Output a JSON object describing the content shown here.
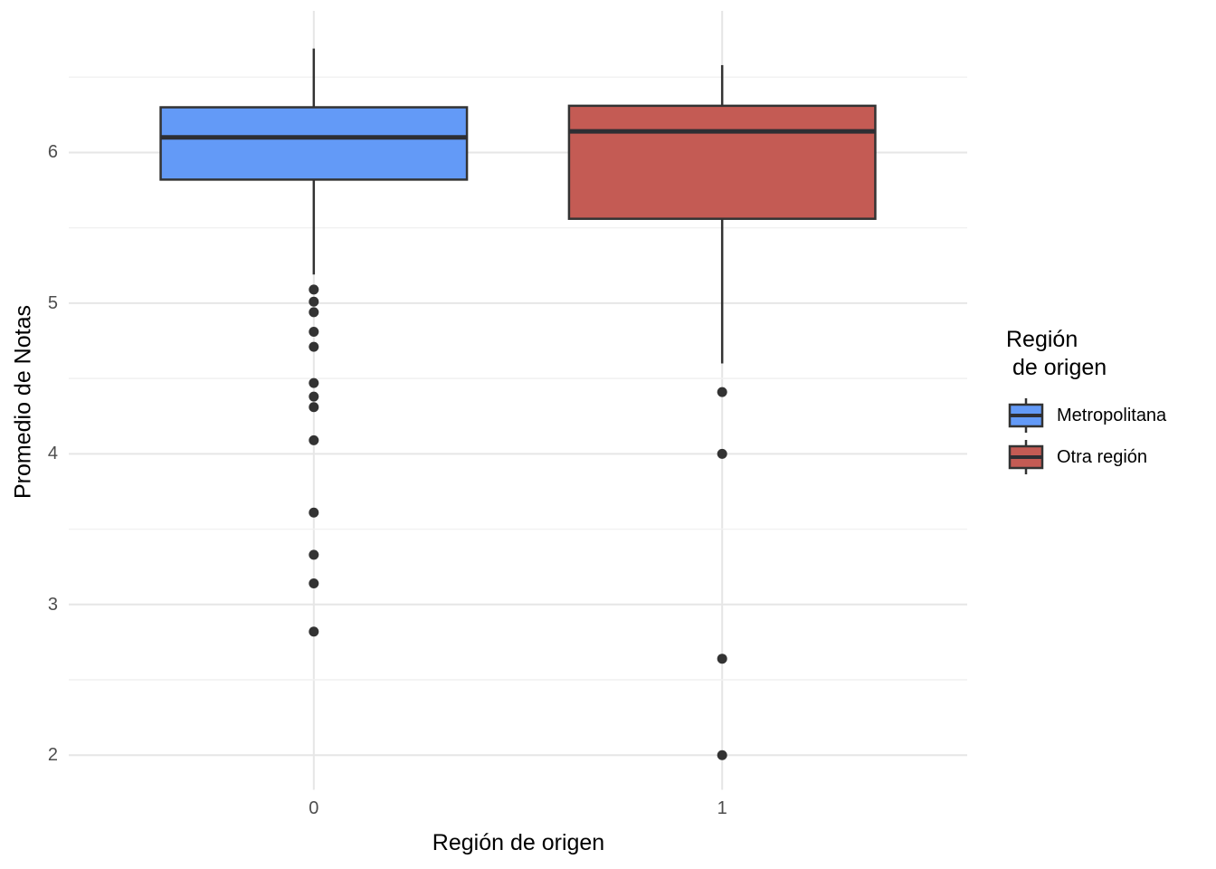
{
  "chart_data": {
    "type": "boxplot",
    "title": "",
    "xlabel": "Región de origen",
    "ylabel": "Promedio de Notas",
    "x_categories": [
      "0",
      "1"
    ],
    "y_ticks": [
      6,
      5,
      4,
      3,
      2
    ],
    "y_minor_ticks": [
      6.5,
      5.5,
      4.5,
      3.5,
      2.5
    ],
    "ylim": [
      1.77,
      6.94
    ],
    "grid": "major and minor horizontal, major vertical at categories",
    "legend_position": "right",
    "legend": {
      "title_line1": "Región",
      "title_line2": " de origen",
      "items": [
        {
          "label": "Metropolitana",
          "fill": "#639AF7"
        },
        {
          "label": "Otra región",
          "fill": "#C45B54"
        }
      ]
    },
    "series": [
      {
        "name": "Metropolitana",
        "category": "0",
        "fill": "#639AF7",
        "whisker_high": 6.69,
        "q3": 6.3,
        "median": 6.1,
        "q1": 5.82,
        "whisker_low": 5.19,
        "outliers": [
          5.09,
          5.01,
          4.94,
          4.81,
          4.71,
          4.47,
          4.38,
          4.31,
          4.09,
          3.61,
          3.33,
          3.14,
          2.82
        ]
      },
      {
        "name": "Otra región",
        "category": "1",
        "fill": "#C45B54",
        "whisker_high": 6.58,
        "q3": 6.31,
        "median": 6.14,
        "q1": 5.56,
        "whisker_low": 4.6,
        "outliers": [
          4.41,
          4.0,
          2.64,
          2.0
        ]
      }
    ]
  },
  "colors": {
    "background": "#ffffff",
    "box_border": "#333333",
    "median_line": "#2e2e33",
    "outlier_dot": "#333333",
    "grid_major": "#e6e6e6",
    "grid_minor": "#f1f1f1",
    "tick_text": "#4d4d4d",
    "title_text": "#000000"
  }
}
